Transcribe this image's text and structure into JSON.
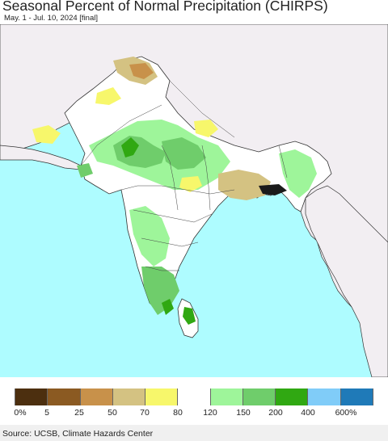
{
  "title": "Seasonal Percent of Normal Precipitation (CHIRPS)",
  "subtitle": "May. 1 - Jul. 10, 2024 [final]",
  "legend": {
    "colors": [
      "#4c2f0f",
      "#8b5a22",
      "#c8914a",
      "#d4c282",
      "#f7f76b",
      "#ffffff",
      "#9ef59a",
      "#6fcd6b",
      "#30a812",
      "#80ccf8",
      "#1f7ab8"
    ],
    "labels": [
      "0%",
      "5",
      "25",
      "50",
      "70",
      "80",
      "120",
      "150",
      "200",
      "400",
      "600%"
    ]
  },
  "map_colors": {
    "ocean": "#aefcff",
    "land_outside": "#f2eef2",
    "near_normal": "#ffffff",
    "border": "#333333"
  },
  "source": "Source: UCSB, Climate Hazards Center"
}
